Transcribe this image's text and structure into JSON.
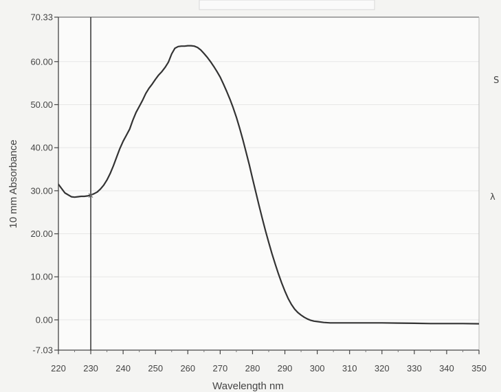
{
  "chart_data": {
    "type": "line",
    "xlabel": "Wavelength nm",
    "ylabel": "10 mm Absorbance",
    "xlim": [
      220,
      350
    ],
    "ylim": [
      -7.03,
      70.33
    ],
    "x_ticks": [
      "220",
      "230",
      "240",
      "250",
      "260",
      "270",
      "280",
      "290",
      "300",
      "310",
      "320",
      "330",
      "340",
      "350"
    ],
    "y_ticks": [
      {
        "value": 70.33,
        "label": "70.33"
      },
      {
        "value": 60,
        "label": "60.00"
      },
      {
        "value": 50,
        "label": "50.00"
      },
      {
        "value": 40,
        "label": "40.00"
      },
      {
        "value": 30,
        "label": "30.00"
      },
      {
        "value": 20,
        "label": "20.00"
      },
      {
        "value": 10,
        "label": "10.00"
      },
      {
        "value": 0,
        "label": "0.00"
      },
      {
        "value": -7.03,
        "label": "-7.03"
      }
    ],
    "grid": "horizontal",
    "cursor": {
      "x": 230,
      "y": 28.9
    },
    "series": [
      {
        "color": "#333333",
        "x": [
          220,
          222,
          224,
          225,
          226,
          227,
          228,
          229,
          230,
          231,
          232,
          233,
          234,
          235,
          236,
          237,
          238,
          239,
          240,
          241,
          242,
          243,
          244,
          245,
          246,
          247,
          248,
          249,
          250,
          251,
          252,
          253,
          254,
          255,
          256,
          257,
          258,
          259,
          260,
          261,
          262,
          263,
          264,
          265,
          266,
          267,
          268,
          269,
          270,
          271,
          272,
          273,
          274,
          275,
          276,
          277,
          278,
          279,
          280,
          281,
          282,
          283,
          284,
          285,
          286,
          287,
          288,
          289,
          290,
          291,
          292,
          293,
          294,
          295,
          296,
          297,
          298,
          299,
          300,
          302,
          304,
          306,
          308,
          310,
          315,
          320,
          325,
          330,
          335,
          340,
          345,
          350
        ],
        "y": [
          31.5,
          29.5,
          28.6,
          28.5,
          28.6,
          28.7,
          28.7,
          28.8,
          29.0,
          29.3,
          29.7,
          30.4,
          31.3,
          32.5,
          34.0,
          35.8,
          37.8,
          39.8,
          41.5,
          42.9,
          44.3,
          46.4,
          48.2,
          49.6,
          51.0,
          52.6,
          53.8,
          54.8,
          55.9,
          56.9,
          57.7,
          58.7,
          59.9,
          61.8,
          63.1,
          63.5,
          63.6,
          63.6,
          63.7,
          63.7,
          63.6,
          63.3,
          62.7,
          61.9,
          61.0,
          60.0,
          58.9,
          57.7,
          56.4,
          54.8,
          53.1,
          51.3,
          49.3,
          47.1,
          44.6,
          41.9,
          39.0,
          36.0,
          32.8,
          29.7,
          26.6,
          23.6,
          20.7,
          18.0,
          15.4,
          13.0,
          10.7,
          8.6,
          6.7,
          5.0,
          3.6,
          2.5,
          1.7,
          1.1,
          0.6,
          0.2,
          -0.1,
          -0.3,
          -0.4,
          -0.6,
          -0.7,
          -0.7,
          -0.7,
          -0.7,
          -0.7,
          -0.7,
          -0.75,
          -0.8,
          -0.85,
          -0.85,
          -0.85,
          -0.9
        ]
      }
    ]
  },
  "side_glyphs": {
    "top": "S",
    "middle": "λ"
  }
}
